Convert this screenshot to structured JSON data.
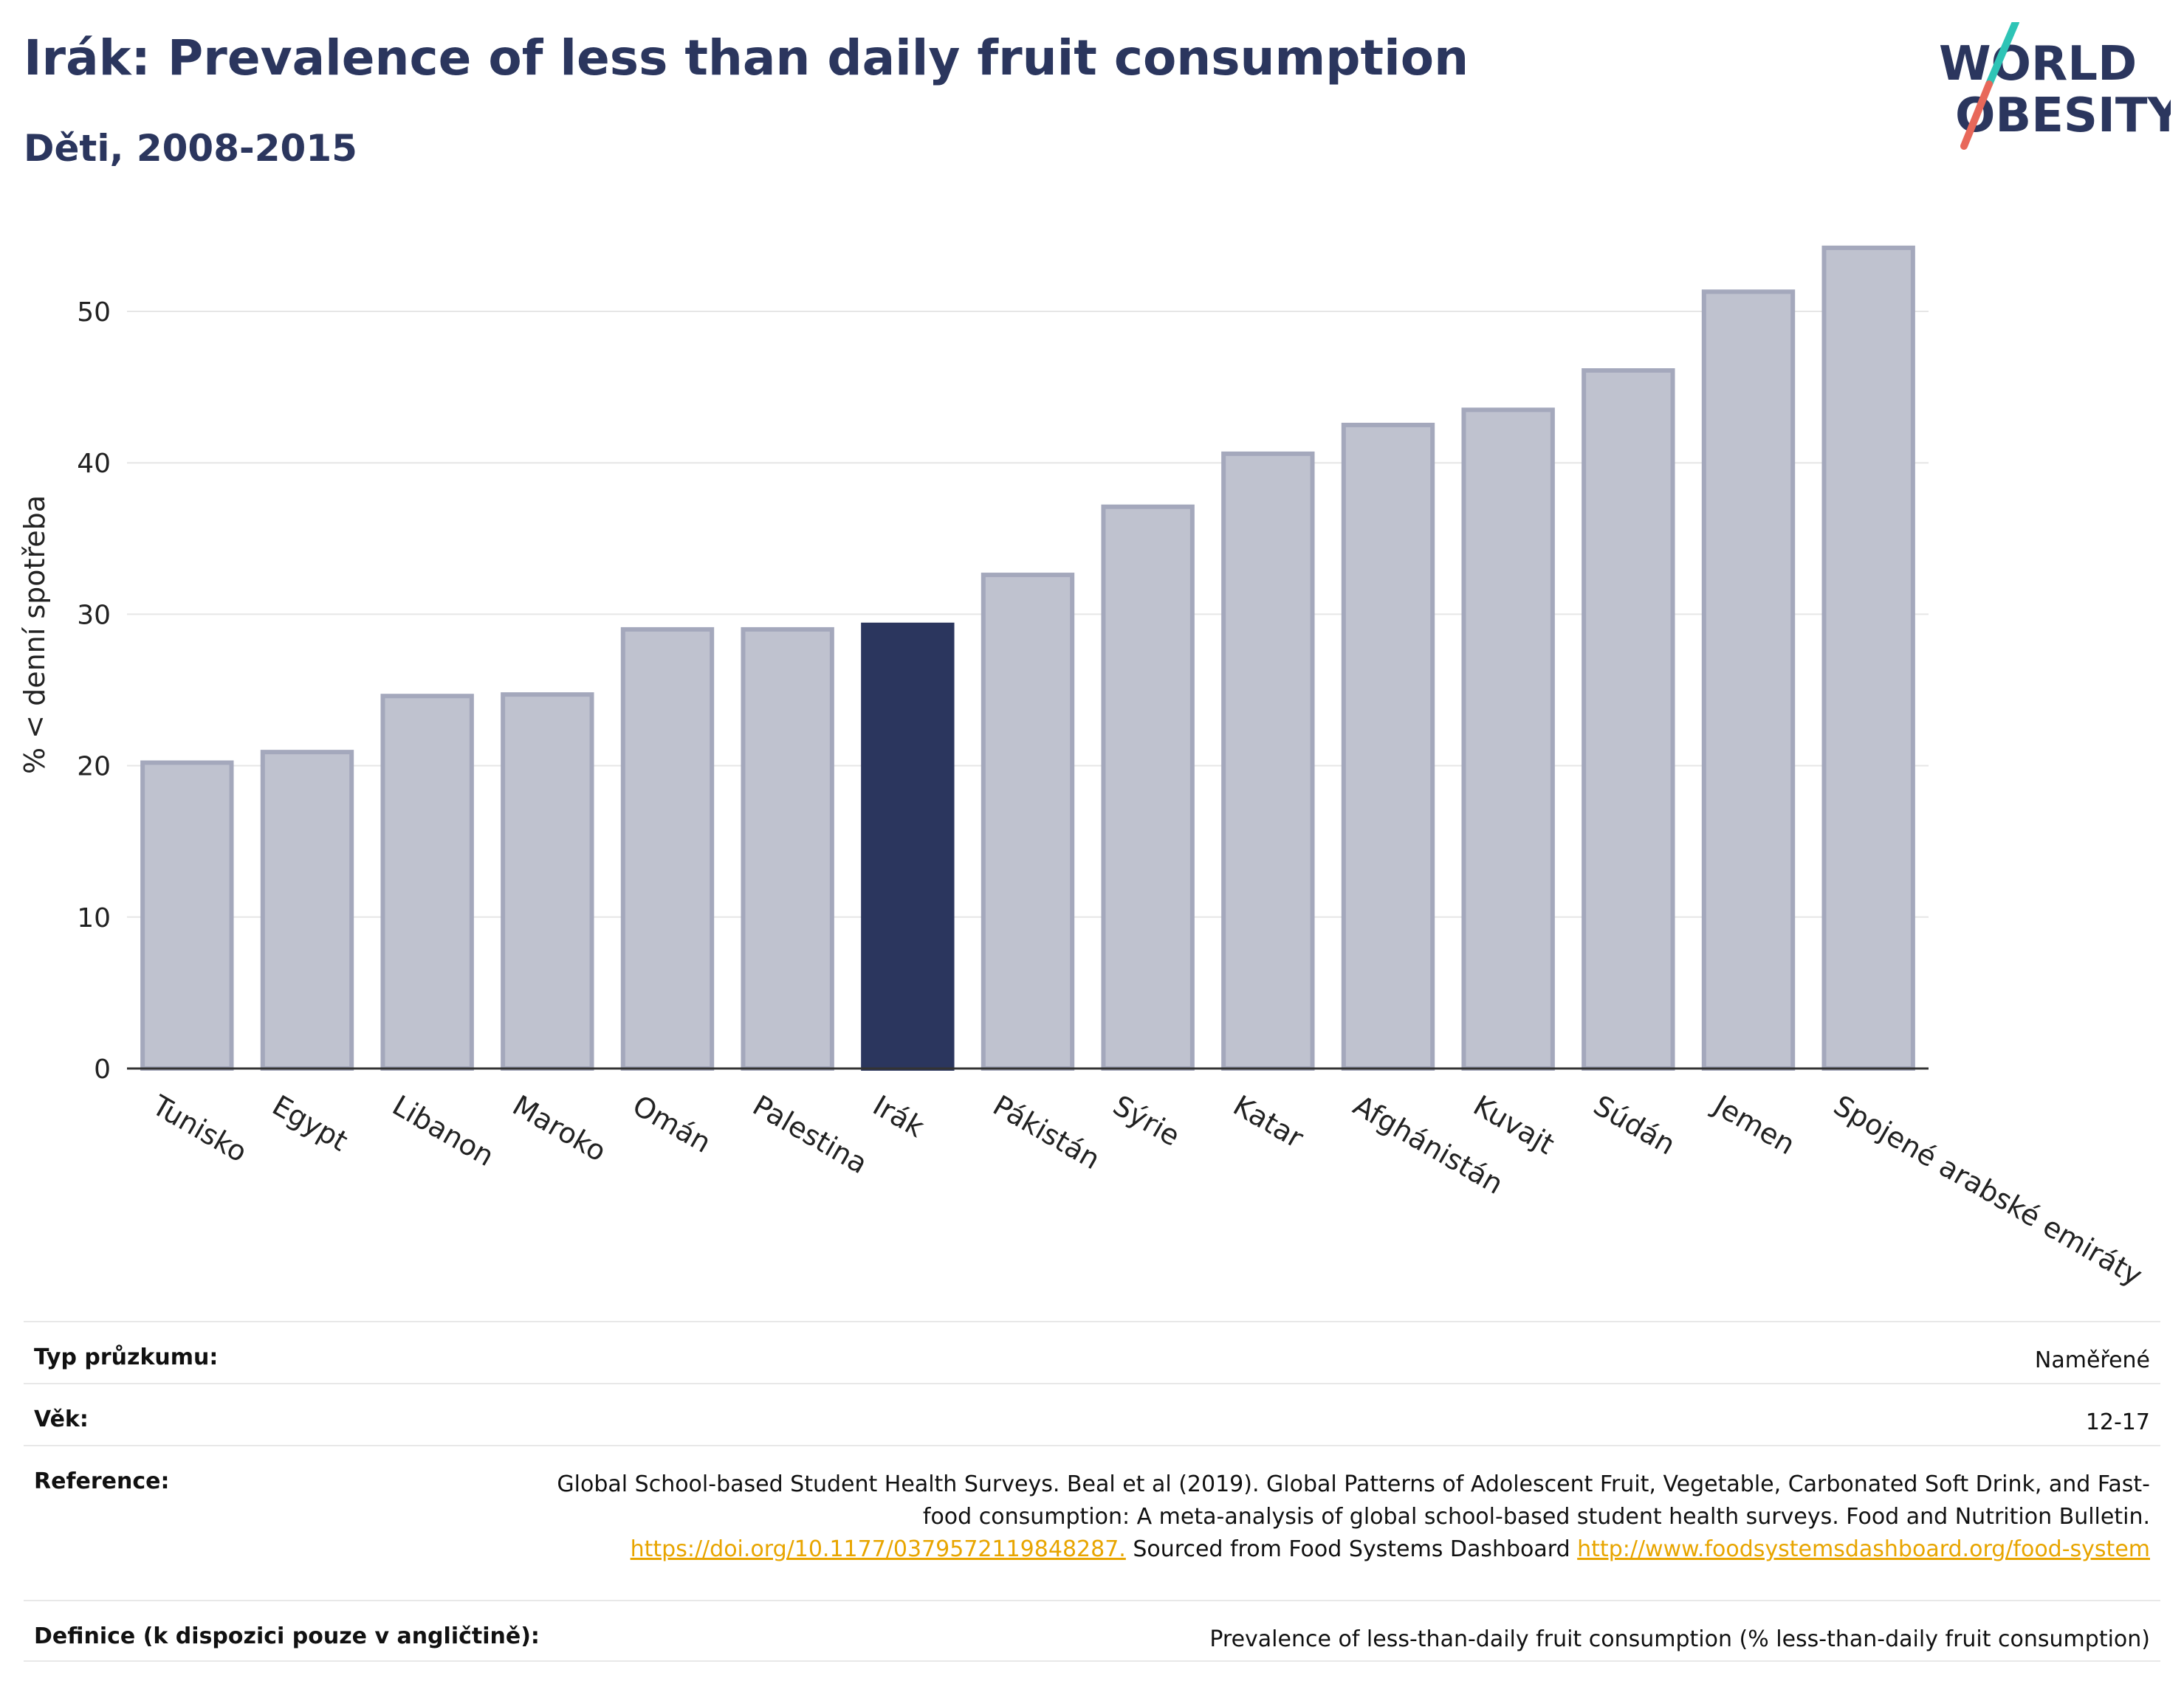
{
  "header": {
    "title": "Irák: Prevalence of less than daily fruit consumption",
    "subtitle": "Děti, 2008-2015"
  },
  "logo": {
    "line1": "WORLD",
    "line2": "OBESITY",
    "accent_teal": "#2ec4b6",
    "accent_red": "#e8685a",
    "text_color": "#2b365e"
  },
  "chart_data": {
    "type": "bar",
    "title": "Irák: Prevalence of less than daily fruit consumption",
    "subtitle": "Děti, 2008-2015",
    "xlabel": "",
    "ylabel": "% < denní spotřeba",
    "ylim": [
      0,
      55
    ],
    "yticks": [
      0,
      10,
      20,
      30,
      40,
      50
    ],
    "grid": true,
    "highlight": "Irák",
    "colors": {
      "bar": "#bfc2cf",
      "bar_edge": "#a4a8bc",
      "highlight": "#2b365e"
    },
    "categories": [
      "Tunisko",
      "Egypt",
      "Libanon",
      "Maroko",
      "Omán",
      "Palestina",
      "Irák",
      "Pákistán",
      "Sýrie",
      "Katar",
      "Afghánistán",
      "Kuvajt",
      "Súdán",
      "Jemen",
      "Spojené arabské emiráty"
    ],
    "values": [
      20.2,
      20.9,
      24.6,
      24.7,
      29.0,
      29.0,
      29.3,
      32.6,
      37.1,
      40.6,
      42.5,
      43.5,
      46.1,
      51.3,
      54.2
    ]
  },
  "info_table": [
    {
      "label": "Typ průzkumu:",
      "value": "Naměřené"
    },
    {
      "label": "Věk:",
      "value": "12-17"
    },
    {
      "label": "Reference:",
      "value": "Global School-based Student Health Surveys. Beal et al (2019). Global Patterns of Adolescent Fruit, Vegetable, Carbonated Soft Drink, and Fast-food consumption: A meta-analysis of global school-based student health surveys. Food and Nutrition Bulletin.",
      "link1": "https://doi.org/10.1177/0379572119848287.",
      "mid": " Sourced from Food Systems Dashboard ",
      "link2": "http://www.foodsystemsdashboard.org/food-system"
    },
    {
      "label": "Definice (k dispozici pouze v angličtině):",
      "value": "Prevalence of less-than-daily fruit consumption (% less-than-daily fruit consumption)"
    }
  ]
}
